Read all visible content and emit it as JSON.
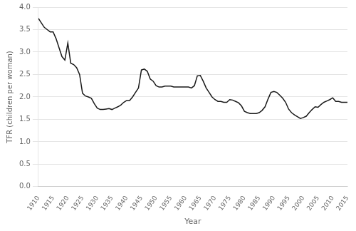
{
  "chart_data": {
    "type": "line",
    "xlabel": "Year",
    "ylabel": "TFR (children per woman)",
    "color": "#1a1a1a",
    "grid": "y",
    "xlim": [
      1910,
      2015
    ],
    "ylim": [
      0.0,
      4.0
    ],
    "xticks": [
      1910,
      1915,
      1920,
      1925,
      1930,
      1935,
      1940,
      1945,
      1950,
      1955,
      1960,
      1965,
      1970,
      1975,
      1980,
      1985,
      1990,
      1995,
      2000,
      2005,
      2010,
      2015
    ],
    "yticks": [
      {
        "value": 0.0,
        "label": "0.0"
      },
      0.5,
      {
        "value": 1.0,
        "label": "1.0"
      },
      1.5,
      {
        "value": 2.0,
        "label": "2.0"
      },
      2.5,
      {
        "value": 3.0,
        "label": "3.0"
      },
      3.5,
      {
        "value": 4.0,
        "label": "4.0"
      }
    ],
    "x": [
      1910,
      1911,
      1912,
      1913,
      1914,
      1915,
      1916,
      1917,
      1918,
      1919,
      1920,
      1921,
      1922,
      1923,
      1924,
      1925,
      1926,
      1927,
      1928,
      1929,
      1930,
      1931,
      1932,
      1933,
      1934,
      1935,
      1936,
      1937,
      1938,
      1939,
      1940,
      1941,
      1942,
      1943,
      1944,
      1945,
      1946,
      1947,
      1948,
      1949,
      1950,
      1951,
      1952,
      1953,
      1954,
      1955,
      1956,
      1957,
      1958,
      1959,
      1960,
      1961,
      1962,
      1963,
      1964,
      1965,
      1966,
      1967,
      1968,
      1969,
      1970,
      1971,
      1972,
      1973,
      1974,
      1975,
      1976,
      1977,
      1978,
      1979,
      1980,
      1981,
      1982,
      1983,
      1984,
      1985,
      1986,
      1987,
      1988,
      1989,
      1990,
      1991,
      1992,
      1993,
      1994,
      1995,
      1996,
      1997,
      1998,
      1999,
      2000,
      2001,
      2002,
      2003,
      2004,
      2005,
      2006,
      2007,
      2008,
      2009,
      2010,
      2011,
      2012,
      2013,
      2014,
      2015
    ],
    "values": [
      3.75,
      3.65,
      3.55,
      3.5,
      3.45,
      3.45,
      3.3,
      3.1,
      2.9,
      2.82,
      3.2,
      2.75,
      2.72,
      2.65,
      2.5,
      2.08,
      2.02,
      2.0,
      1.97,
      1.85,
      1.75,
      1.72,
      1.72,
      1.73,
      1.74,
      1.72,
      1.75,
      1.78,
      1.82,
      1.88,
      1.92,
      1.92,
      2.0,
      2.1,
      2.2,
      2.6,
      2.62,
      2.57,
      2.4,
      2.35,
      2.25,
      2.22,
      2.22,
      2.24,
      2.24,
      2.24,
      2.22,
      2.22,
      2.22,
      2.22,
      2.22,
      2.22,
      2.2,
      2.25,
      2.47,
      2.48,
      2.35,
      2.2,
      2.1,
      2.0,
      1.94,
      1.9,
      1.9,
      1.88,
      1.88,
      1.94,
      1.93,
      1.9,
      1.87,
      1.8,
      1.68,
      1.65,
      1.63,
      1.63,
      1.63,
      1.65,
      1.7,
      1.78,
      1.95,
      2.1,
      2.12,
      2.1,
      2.04,
      1.97,
      1.88,
      1.73,
      1.65,
      1.6,
      1.56,
      1.52,
      1.54,
      1.57,
      1.65,
      1.72,
      1.78,
      1.77,
      1.83,
      1.88,
      1.91,
      1.94,
      1.98,
      1.9,
      1.9,
      1.88,
      1.88,
      1.88
    ]
  }
}
